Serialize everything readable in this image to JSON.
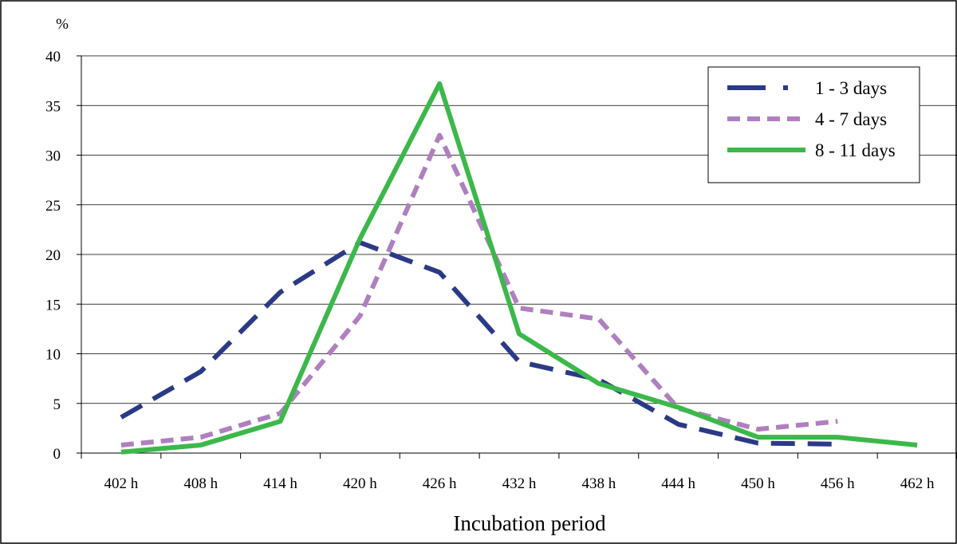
{
  "chart_data": {
    "type": "line",
    "unit_label": "%",
    "xlabel": "Incubation period",
    "ylabel": "",
    "categories": [
      "402 h",
      "408 h",
      "414 h",
      "420 h",
      "426 h",
      "432 h",
      "438 h",
      "444 h",
      "450 h",
      "456 h",
      "462 h"
    ],
    "ylim": [
      0,
      40
    ],
    "yticks": [
      0,
      5,
      10,
      15,
      20,
      25,
      30,
      35,
      40
    ],
    "grid": "horizontal",
    "legend_position": "top-right",
    "series": [
      {
        "name": "1 - 3 days",
        "color": "#2b3a86",
        "style": "long-dash",
        "values": [
          3.6,
          8.2,
          16.2,
          21.2,
          18.2,
          9.2,
          7.4,
          2.9,
          1.0,
          0.9,
          null
        ]
      },
      {
        "name": "4 - 7 days",
        "color": "#b07fc0",
        "style": "short-dash",
        "values": [
          0.8,
          1.6,
          4.0,
          13.8,
          32.0,
          14.6,
          13.5,
          4.5,
          2.4,
          3.2,
          null
        ]
      },
      {
        "name": "8 - 11 days",
        "color": "#3cb84a",
        "style": "solid",
        "values": [
          0.1,
          0.8,
          3.2,
          21.6,
          37.2,
          12.0,
          7.0,
          4.6,
          1.6,
          1.6,
          0.8
        ]
      }
    ]
  }
}
